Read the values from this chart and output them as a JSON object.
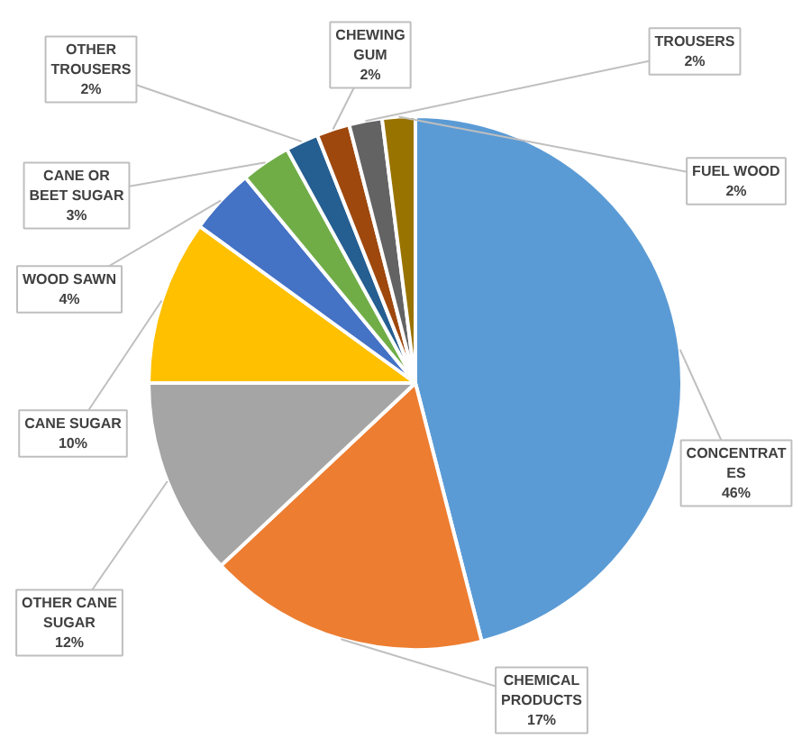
{
  "chart_data": {
    "type": "pie",
    "categories": [
      "CONCENTRATES",
      "CHEMICAL PRODUCTS",
      "OTHER CANE SUGAR",
      "CANE SUGAR",
      "WOOD SAWN",
      "CANE OR BEET SUGAR",
      "OTHER TROUSERS",
      "CHEWING GUM",
      "TROUSERS",
      "FUEL WOOD"
    ],
    "values": [
      46,
      17,
      12,
      10,
      4,
      3,
      2,
      2,
      2,
      2
    ],
    "value_labels": [
      "46%",
      "17%",
      "12%",
      "10%",
      "4%",
      "3%",
      "2%",
      "2%",
      "2%",
      "2%"
    ],
    "colors": [
      "#5b9bd5",
      "#ed7d31",
      "#a5a5a5",
      "#ffc000",
      "#4472c4",
      "#70ad47",
      "#255e91",
      "#9e480e",
      "#636363",
      "#997300"
    ]
  }
}
